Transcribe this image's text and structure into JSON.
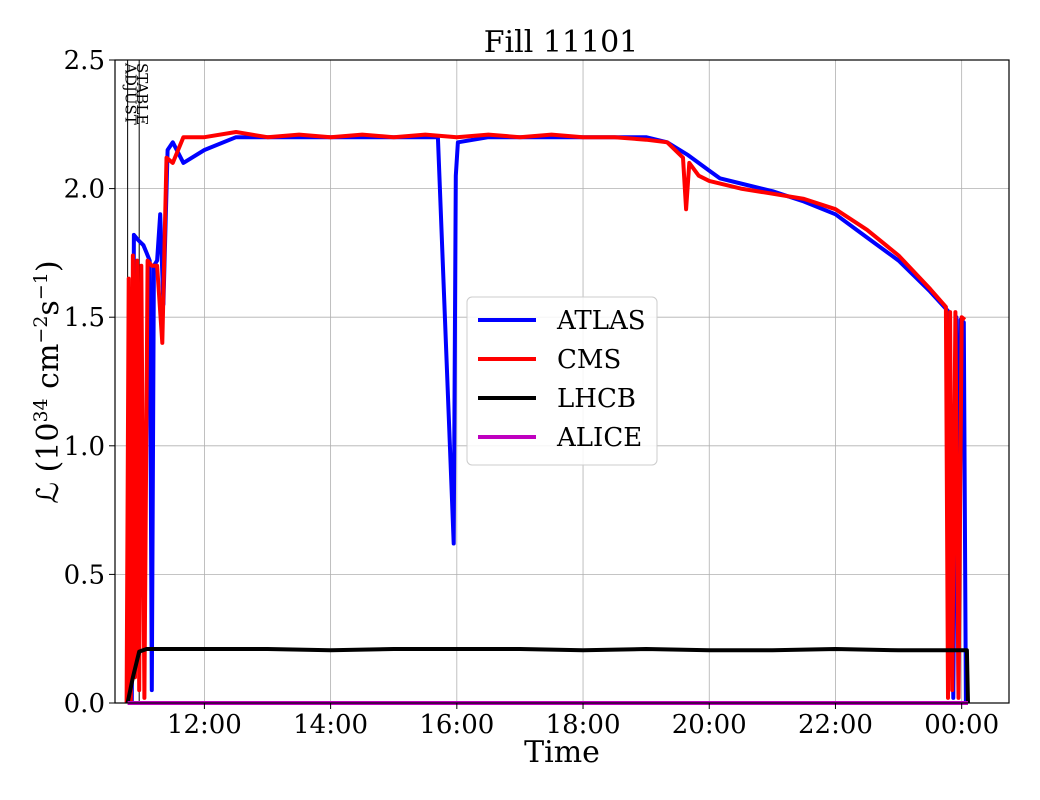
{
  "chart_data": {
    "type": "line",
    "title": "Fill 11101",
    "xlabel": "Time",
    "ylabel_parts": [
      "ℒ (10",
      "34",
      " cm",
      "−2",
      "s",
      "−1",
      ")"
    ],
    "xlim": [
      "10:35",
      "00:45"
    ],
    "ylim": [
      0,
      2.5
    ],
    "x_ticks": [
      "12:00",
      "14:00",
      "16:00",
      "18:00",
      "20:00",
      "22:00",
      "00:00"
    ],
    "y_ticks": [
      "0.0",
      "0.5",
      "1.0",
      "1.5",
      "2.0",
      "2.5"
    ],
    "grid": true,
    "legend_position": "center",
    "annotations": [
      {
        "time": "10:47",
        "label": "ADJUST"
      },
      {
        "time": "10:58",
        "label": "STABLE"
      }
    ],
    "series": [
      {
        "name": "ATLAS",
        "color": "#0000ff",
        "points": [
          [
            "10:47",
            0.0
          ],
          [
            "10:49",
            0.72
          ],
          [
            "10:51",
            0.0
          ],
          [
            "10:53",
            1.82
          ],
          [
            "10:57",
            1.8
          ],
          [
            "11:02",
            1.78
          ],
          [
            "11:05",
            1.75
          ],
          [
            "11:08",
            1.72
          ],
          [
            "11:10",
            0.05
          ],
          [
            "11:12",
            1.7
          ],
          [
            "11:15",
            1.72
          ],
          [
            "11:18",
            1.9
          ],
          [
            "11:21",
            1.55
          ],
          [
            "11:25",
            2.15
          ],
          [
            "11:30",
            2.18
          ],
          [
            "11:40",
            2.1
          ],
          [
            "12:00",
            2.15
          ],
          [
            "12:30",
            2.2
          ],
          [
            "13:00",
            2.2
          ],
          [
            "13:30",
            2.2
          ],
          [
            "14:00",
            2.2
          ],
          [
            "14:30",
            2.2
          ],
          [
            "15:00",
            2.2
          ],
          [
            "15:30",
            2.2
          ],
          [
            "15:42",
            2.2
          ],
          [
            "15:57",
            0.62
          ],
          [
            "15:59",
            2.05
          ],
          [
            "16:01",
            2.18
          ],
          [
            "16:30",
            2.2
          ],
          [
            "17:00",
            2.2
          ],
          [
            "17:30",
            2.2
          ],
          [
            "18:00",
            2.2
          ],
          [
            "18:30",
            2.2
          ],
          [
            "19:00",
            2.2
          ],
          [
            "19:20",
            2.18
          ],
          [
            "19:40",
            2.13
          ],
          [
            "20:00",
            2.07
          ],
          [
            "20:10",
            2.04
          ],
          [
            "20:30",
            2.02
          ],
          [
            "21:00",
            1.99
          ],
          [
            "21:30",
            1.95
          ],
          [
            "22:00",
            1.9
          ],
          [
            "22:30",
            1.81
          ],
          [
            "23:00",
            1.72
          ],
          [
            "23:30",
            1.6
          ],
          [
            "23:48",
            1.52
          ],
          [
            "23:52",
            0.02
          ],
          [
            "23:55",
            1.5
          ],
          [
            "23:57",
            0.03
          ],
          [
            "23:59",
            1.49
          ],
          [
            "00:02",
            1.48
          ],
          [
            "00:04",
            0.0
          ]
        ]
      },
      {
        "name": "CMS",
        "color": "#ff0000",
        "points": [
          [
            "10:46",
            0.0
          ],
          [
            "10:48",
            1.65
          ],
          [
            "10:50",
            0.0
          ],
          [
            "10:52",
            1.74
          ],
          [
            "10:54",
            0.1
          ],
          [
            "10:56",
            1.72
          ],
          [
            "10:58",
            0.05
          ],
          [
            "11:00",
            1.7
          ],
          [
            "11:03",
            0.02
          ],
          [
            "11:06",
            1.72
          ],
          [
            "11:10",
            1.7
          ],
          [
            "11:15",
            1.7
          ],
          [
            "11:20",
            1.4
          ],
          [
            "11:24",
            2.12
          ],
          [
            "11:30",
            2.1
          ],
          [
            "11:40",
            2.2
          ],
          [
            "12:00",
            2.2
          ],
          [
            "12:30",
            2.22
          ],
          [
            "13:00",
            2.2
          ],
          [
            "13:30",
            2.21
          ],
          [
            "14:00",
            2.2
          ],
          [
            "14:30",
            2.21
          ],
          [
            "15:00",
            2.2
          ],
          [
            "15:30",
            2.21
          ],
          [
            "16:00",
            2.2
          ],
          [
            "16:30",
            2.21
          ],
          [
            "17:00",
            2.2
          ],
          [
            "17:30",
            2.21
          ],
          [
            "18:00",
            2.2
          ],
          [
            "18:30",
            2.2
          ],
          [
            "19:00",
            2.19
          ],
          [
            "19:20",
            2.18
          ],
          [
            "19:35",
            2.12
          ],
          [
            "19:38",
            1.92
          ],
          [
            "19:41",
            2.1
          ],
          [
            "19:50",
            2.05
          ],
          [
            "20:00",
            2.03
          ],
          [
            "20:30",
            2.0
          ],
          [
            "21:00",
            1.98
          ],
          [
            "21:30",
            1.96
          ],
          [
            "22:00",
            1.92
          ],
          [
            "22:30",
            1.84
          ],
          [
            "23:00",
            1.74
          ],
          [
            "23:30",
            1.61
          ],
          [
            "23:45",
            1.54
          ],
          [
            "23:47",
            0.02
          ],
          [
            "23:49",
            1.52
          ],
          [
            "23:51",
            0.05
          ],
          [
            "23:54",
            1.52
          ],
          [
            "23:57",
            0.02
          ],
          [
            "00:00",
            1.5
          ],
          [
            "00:03",
            1.49
          ]
        ]
      },
      {
        "name": "LHCB",
        "color": "#000000",
        "points": [
          [
            "10:47",
            0.0
          ],
          [
            "10:52",
            0.1
          ],
          [
            "10:58",
            0.2
          ],
          [
            "11:05",
            0.21
          ],
          [
            "12:00",
            0.21
          ],
          [
            "13:00",
            0.21
          ],
          [
            "14:00",
            0.205
          ],
          [
            "15:00",
            0.21
          ],
          [
            "16:00",
            0.21
          ],
          [
            "17:00",
            0.21
          ],
          [
            "18:00",
            0.205
          ],
          [
            "19:00",
            0.21
          ],
          [
            "20:00",
            0.205
          ],
          [
            "21:00",
            0.205
          ],
          [
            "22:00",
            0.21
          ],
          [
            "23:00",
            0.205
          ],
          [
            "23:50",
            0.205
          ],
          [
            "00:05",
            0.205
          ],
          [
            "00:06",
            0.0
          ]
        ]
      },
      {
        "name": "ALICE",
        "color": "#bf00bf",
        "points": [
          [
            "10:47",
            0.0
          ],
          [
            "00:06",
            0.0
          ]
        ]
      }
    ]
  }
}
